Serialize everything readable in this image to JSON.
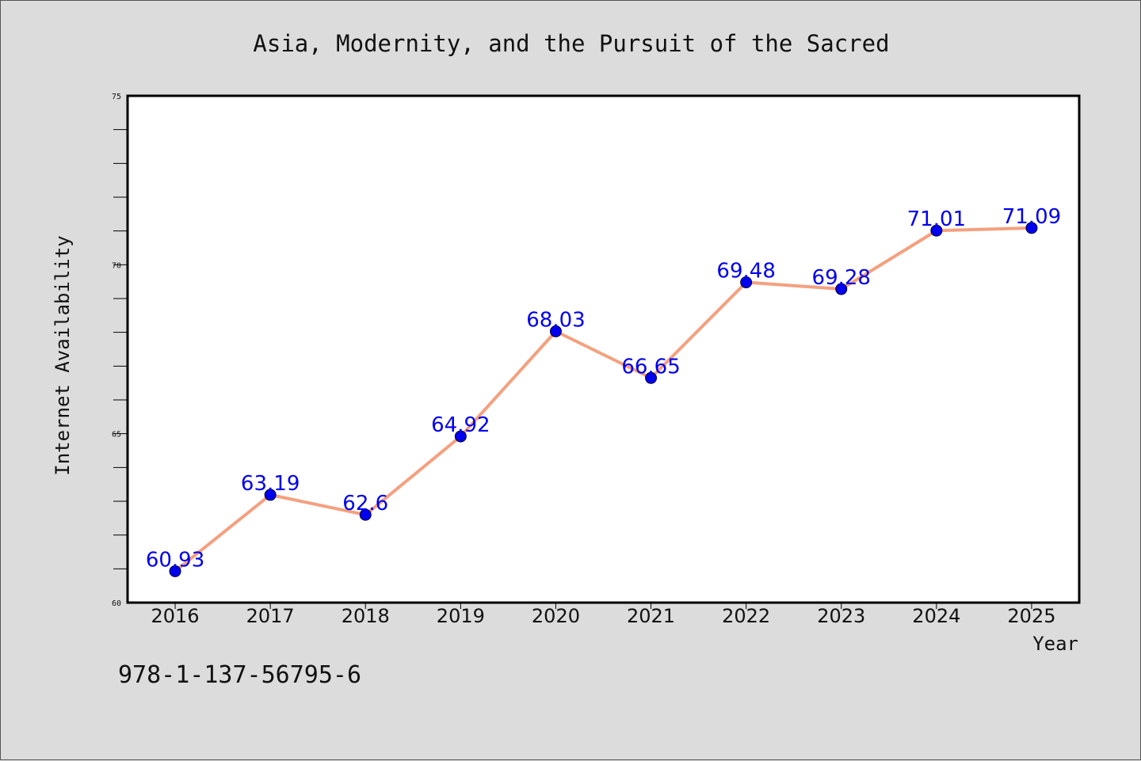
{
  "chart_data": {
    "type": "line",
    "title": "Asia, Modernity, and the Pursuit of the Sacred",
    "xlabel": "Year",
    "ylabel": "Internet Availability",
    "categories": [
      "2016",
      "2017",
      "2018",
      "2019",
      "2020",
      "2021",
      "2022",
      "2023",
      "2024",
      "2025"
    ],
    "values": [
      60.93,
      63.19,
      62.6,
      64.92,
      68.03,
      66.65,
      69.48,
      69.28,
      71.01,
      71.09
    ],
    "data_labels": [
      "60.93",
      "63.19",
      "62.6",
      "64.92",
      "68.03",
      "66.65",
      "69.48",
      "69.28",
      "71.01",
      "71.09"
    ],
    "ylim": [
      60,
      75
    ],
    "yticks": [
      "60",
      "65",
      "70",
      "75"
    ],
    "ytick_values": [
      60,
      65,
      70,
      75
    ],
    "line_color": "#f4a07f",
    "marker_color": "#0000ee",
    "label_color": "#0000ee",
    "grid": false,
    "legend": "none"
  },
  "footer": {
    "isbn": "978-1-137-56795-6"
  }
}
